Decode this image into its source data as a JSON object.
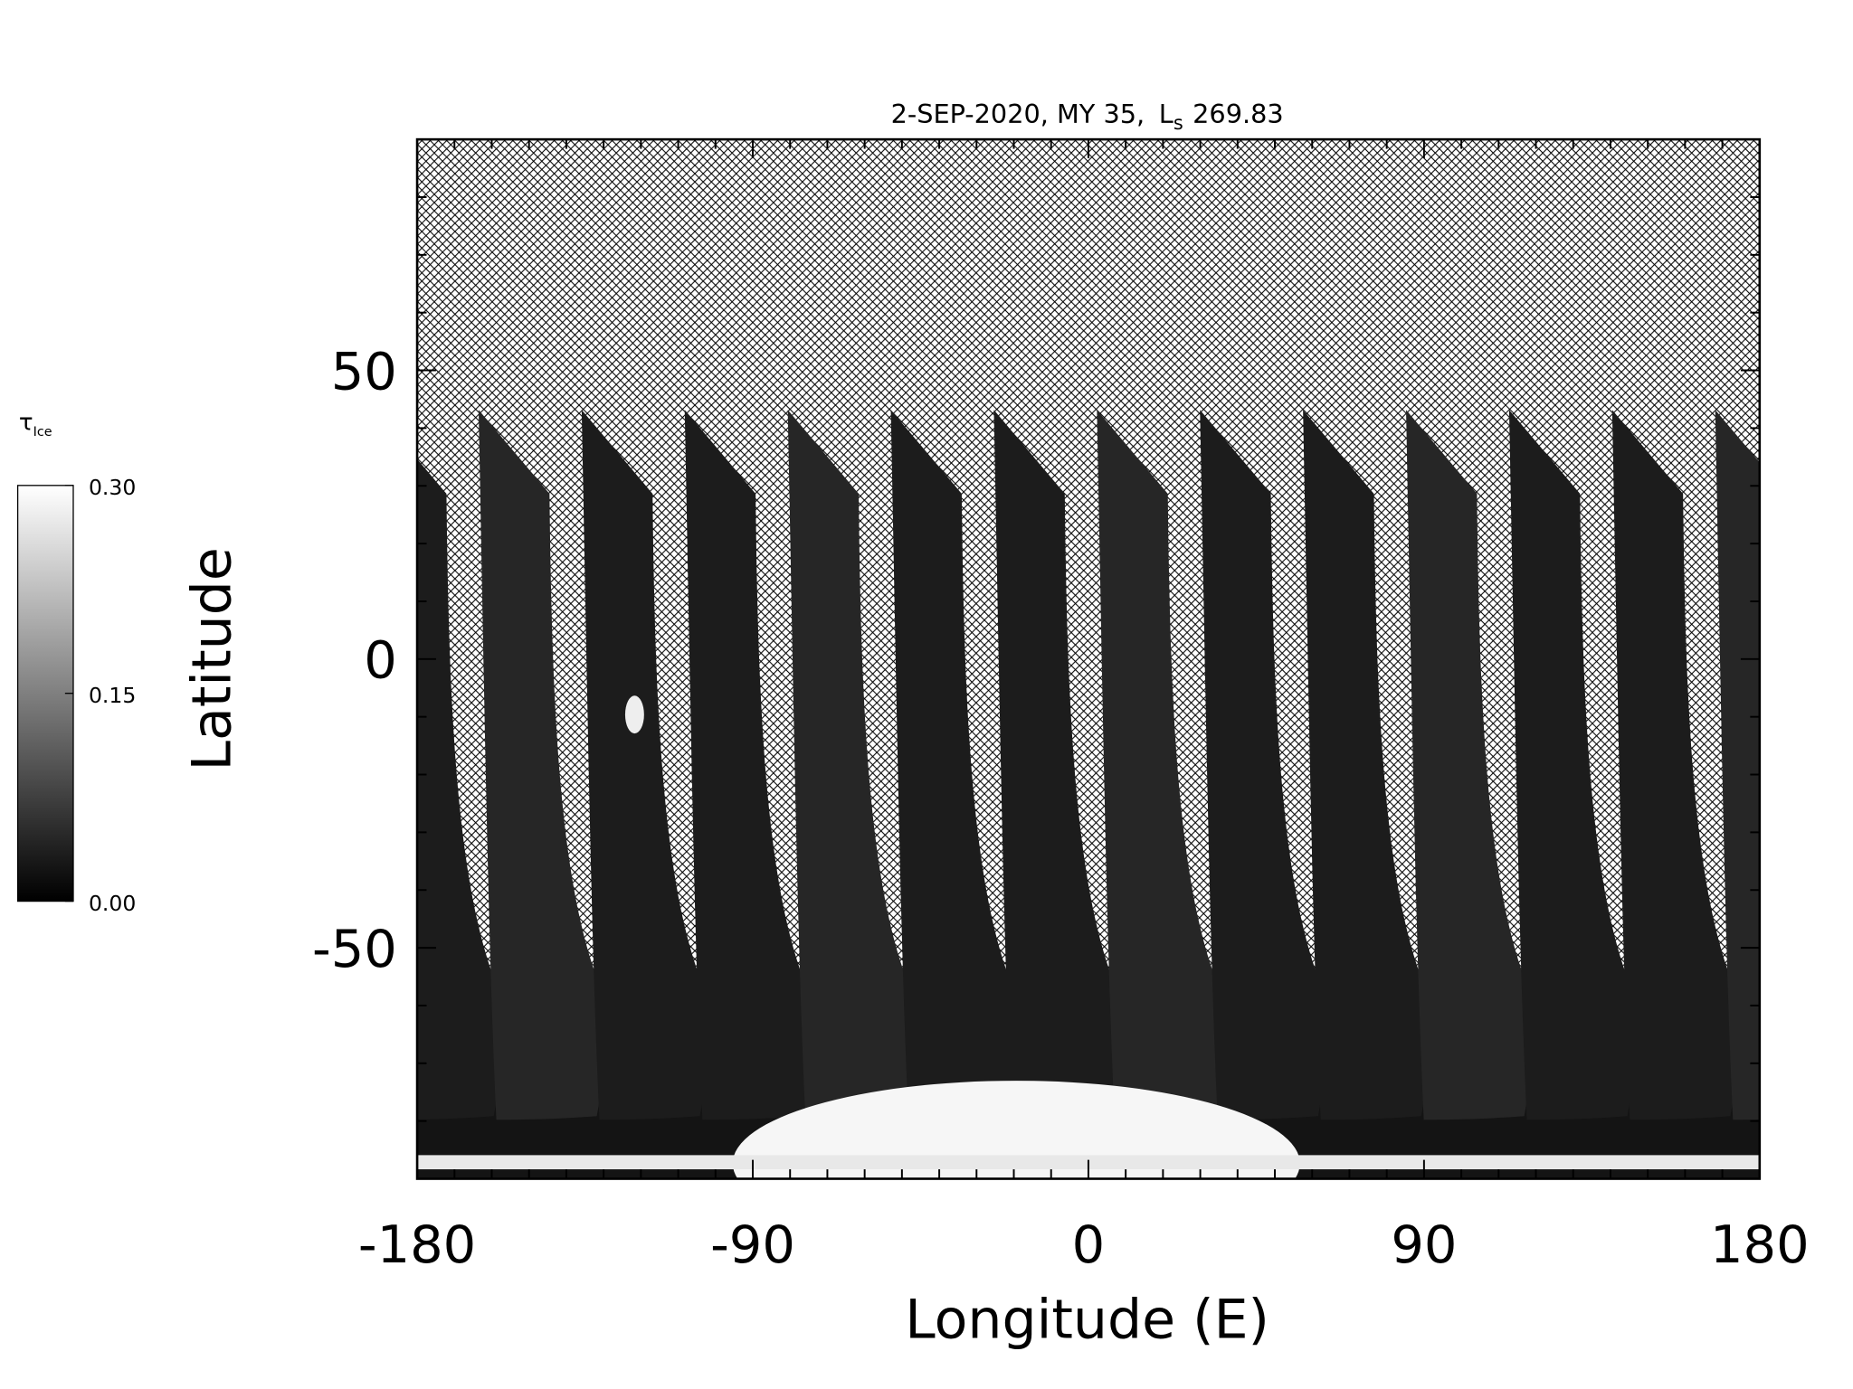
{
  "chart_data": {
    "type": "map",
    "title": {
      "date": "2-SEP-2020, MY 35,",
      "ls_symbol": "L",
      "ls_subscript": "s",
      "ls_value": "269.83"
    },
    "x_label": "Longitude (E)",
    "y_label": "Latitude",
    "xlim": [
      -180,
      180
    ],
    "ylim": [
      -90,
      90
    ],
    "xticks": [
      -180,
      -90,
      0,
      90,
      180
    ],
    "yticks": [
      -50,
      0,
      50
    ],
    "xminorticks": [
      -170,
      -160,
      -150,
      -140,
      -130,
      -120,
      -110,
      -100,
      -80,
      -70,
      -60,
      -50,
      -40,
      -30,
      -20,
      -10,
      10,
      20,
      30,
      40,
      50,
      60,
      70,
      80,
      100,
      110,
      120,
      130,
      140,
      150,
      160,
      170
    ],
    "yminorticks": [
      -80,
      -70,
      -60,
      -40,
      -30,
      -20,
      -10,
      10,
      20,
      30,
      40,
      60,
      70,
      80
    ],
    "colorbar": {
      "label": "τ",
      "label_subscript": "Ice",
      "lim": [
        0,
        0.3
      ],
      "ticks": [
        {
          "value": 0,
          "label": "0.00"
        },
        {
          "value": 0.15,
          "label": "0.15"
        },
        {
          "value": 0.3,
          "label": "0.30"
        }
      ],
      "colors": [
        "#000000",
        "#ffffff"
      ]
    }
  }
}
